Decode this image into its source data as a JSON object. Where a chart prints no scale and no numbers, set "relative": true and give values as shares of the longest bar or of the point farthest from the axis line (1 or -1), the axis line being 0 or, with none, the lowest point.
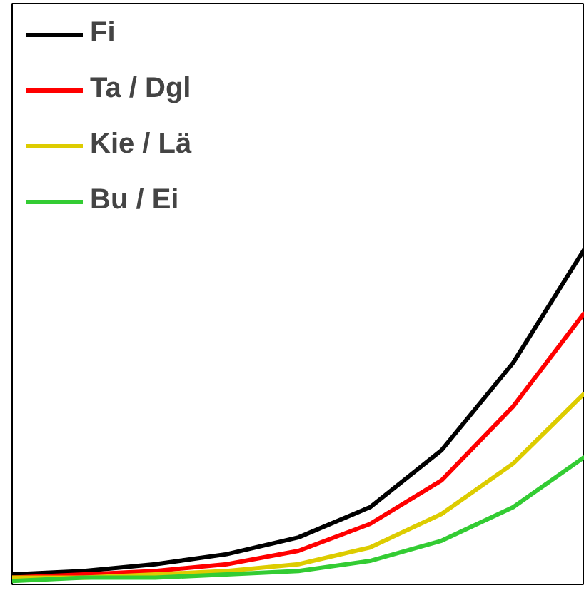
{
  "chart_data": {
    "type": "line",
    "relative": true,
    "categories": [
      null,
      null,
      null,
      null,
      null,
      null,
      null,
      null,
      null
    ],
    "legend": "top left",
    "grid": false,
    "marker": "none",
    "line_style": "solid",
    "series": [
      {
        "name": "Fi",
        "color": "#000000",
        "values": [
          0.03,
          0.04,
          0.06,
          0.09,
          0.14,
          0.23,
          0.4,
          0.66,
          1
        ]
      },
      {
        "name": "Ta / Dgl",
        "color": "#ff0000",
        "values": [
          0.02,
          0.03,
          0.04,
          0.06,
          0.1,
          0.18,
          0.31,
          0.53,
          0.81
        ]
      },
      {
        "name": "Kie / Lä",
        "color": "#ddcc00",
        "values": [
          0.02,
          0.02,
          0.03,
          0.04,
          0.06,
          0.11,
          0.21,
          0.36,
          0.57
        ]
      },
      {
        "name": "Bu / Ei",
        "color": "#33cc33",
        "values": [
          0.01,
          0.02,
          0.02,
          0.03,
          0.04,
          0.07,
          0.13,
          0.23,
          0.38
        ]
      }
    ]
  }
}
